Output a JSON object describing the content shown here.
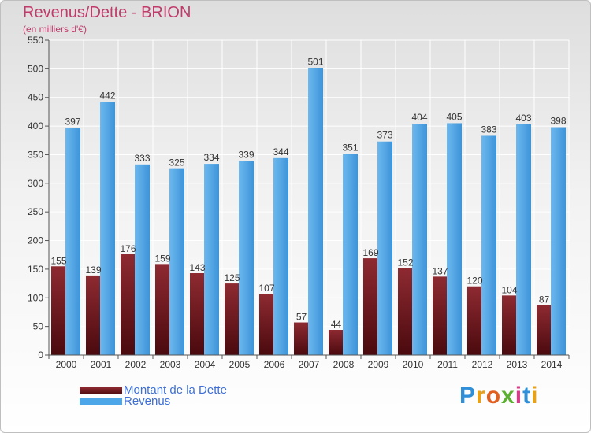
{
  "title": "Revenus/Dette - BRION",
  "subtitle": "(en milliers d'€)",
  "legend": {
    "dette": "Montant de la Dette",
    "revenus": "Revenus"
  },
  "logo": "Proxiti",
  "colors": {
    "dette": "#7a1e24",
    "revenus": "#4da6e8"
  },
  "chart_data": {
    "type": "bar",
    "categories": [
      "2000",
      "2001",
      "2002",
      "2003",
      "2004",
      "2005",
      "2006",
      "2007",
      "2008",
      "2009",
      "2010",
      "2011",
      "2012",
      "2013",
      "2014"
    ],
    "series": [
      {
        "name": "Montant de la Dette",
        "values": [
          155,
          139,
          176,
          159,
          143,
          125,
          107,
          57,
          44,
          169,
          152,
          137,
          120,
          104,
          87
        ]
      },
      {
        "name": "Revenus",
        "values": [
          397,
          442,
          333,
          325,
          334,
          339,
          344,
          501,
          351,
          373,
          404,
          405,
          383,
          403,
          398
        ]
      }
    ],
    "ylim": [
      0,
      550
    ],
    "yticks": [
      0,
      50,
      100,
      150,
      200,
      250,
      300,
      350,
      400,
      450,
      500,
      550
    ],
    "grid": true,
    "legend_position": "bottom-left"
  }
}
